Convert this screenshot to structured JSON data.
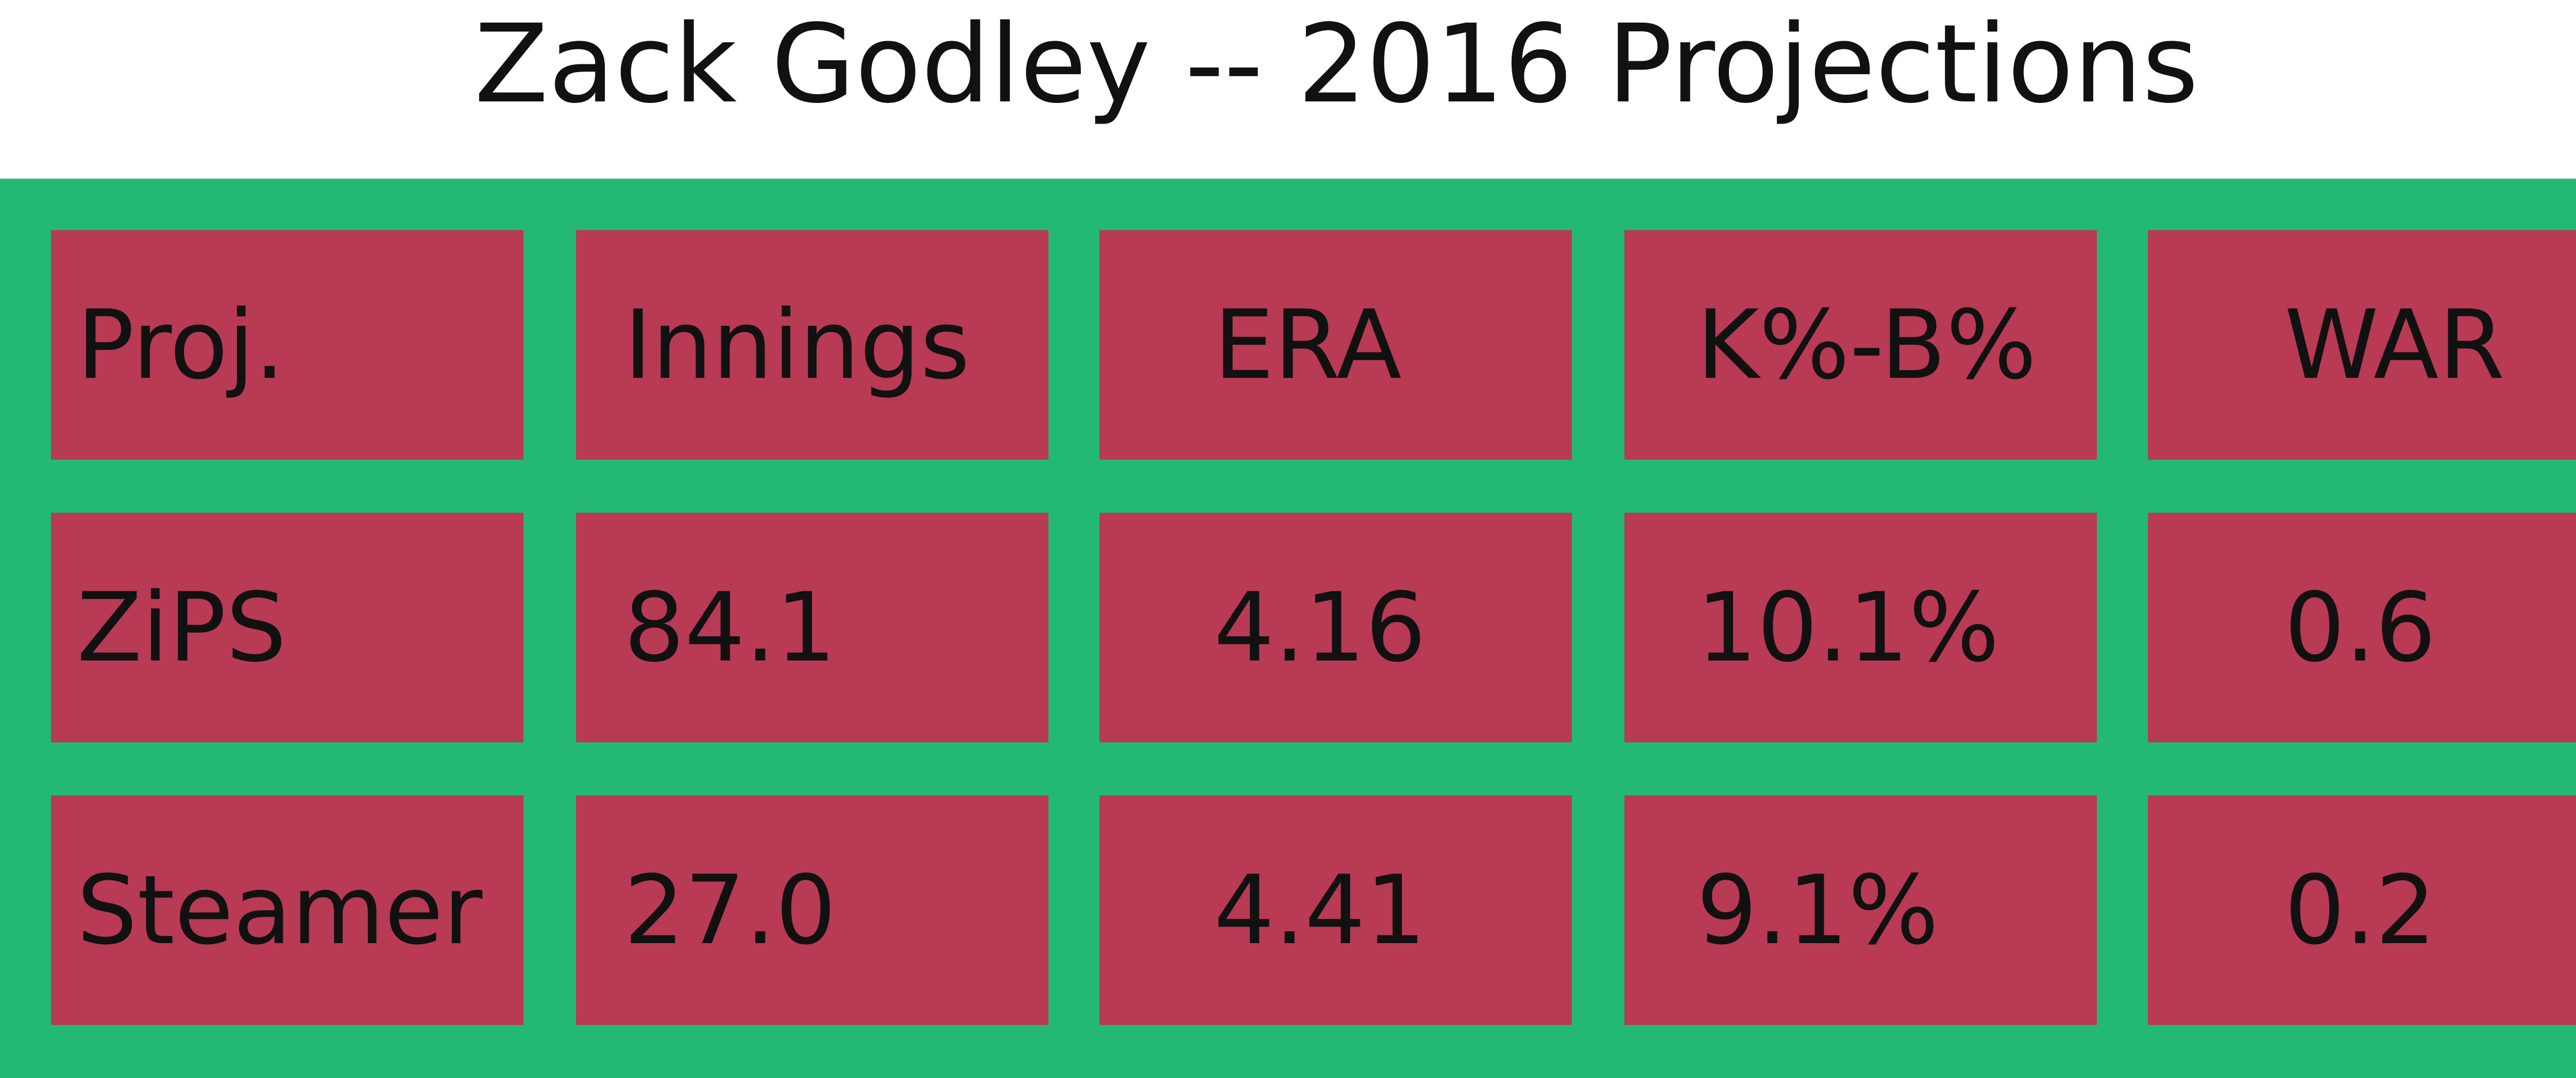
{
  "header": {
    "title": "Zack Godley -- 2016 Projections"
  },
  "table": {
    "rows": [
      [
        "Proj.",
        "Innings",
        "ERA",
        "K%-B%",
        "WAR"
      ],
      [
        "ZiPS",
        "84.1",
        "4.16",
        "10.1%",
        "0.6"
      ],
      [
        "Steamer",
        "27.0",
        "4.41",
        "9.1%",
        "0.2"
      ]
    ]
  }
}
